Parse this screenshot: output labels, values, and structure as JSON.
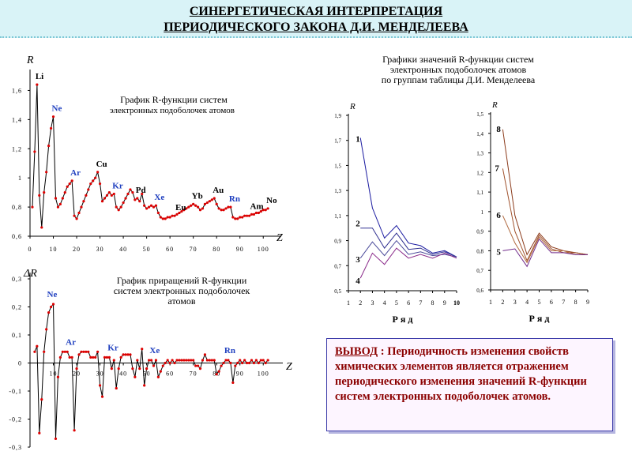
{
  "title": {
    "line1": "СИНЕРГЕТИЧЕСКАЯ ИНТЕРПРЕТАЦИЯ",
    "line2": "ПЕРИОДИЧЕСКОГО ЗАКОНА Д.И. МЕНДЕЛЕЕВА"
  },
  "colors": {
    "accent": "#1f3fbf",
    "curve": "#000000",
    "points": "#dd0000",
    "conclusion": "#8b0000"
  },
  "conclusion": {
    "heading": "ВЫВОД",
    "sep": " : ",
    "text": "Периодичность изменения свойств химических элементов является отражением периодического изменения значений R-функции систем электронных подоболочек атомов."
  },
  "chart_data": [
    {
      "type": "line",
      "title": "График R-функции систем электронных подоболочек атомов",
      "title_lines": [
        "График R-функции систем",
        "электронных подоболочек атомов"
      ],
      "xlabel": "Z",
      "ylabel": "R",
      "xlim": [
        0,
        105
      ],
      "ylim": [
        0.6,
        1.7
      ],
      "xticks": [
        0,
        10,
        20,
        30,
        40,
        50,
        60,
        70,
        80,
        90,
        100
      ],
      "xtick_labels": [
        "0",
        "10",
        "20",
        "30",
        "40",
        "50",
        "60",
        "70",
        "80",
        "90",
        "100"
      ],
      "yticks": [
        0.6,
        0.8,
        1.0,
        1.2,
        1.4,
        1.6
      ],
      "ytick_labels": [
        "0,6",
        "0,8",
        "1",
        "1,2",
        "1,4",
        "1,6"
      ],
      "x": [
        1,
        2,
        3,
        4,
        5,
        6,
        7,
        8,
        9,
        10,
        11,
        12,
        13,
        14,
        15,
        16,
        17,
        18,
        19,
        20,
        21,
        22,
        23,
        24,
        25,
        26,
        27,
        28,
        29,
        30,
        31,
        32,
        33,
        34,
        35,
        36,
        37,
        38,
        39,
        40,
        41,
        42,
        43,
        44,
        45,
        46,
        47,
        48,
        49,
        50,
        51,
        52,
        53,
        54,
        55,
        56,
        57,
        58,
        59,
        60,
        61,
        62,
        63,
        64,
        65,
        66,
        67,
        68,
        69,
        70,
        71,
        72,
        73,
        74,
        75,
        76,
        77,
        78,
        79,
        80,
        81,
        82,
        83,
        84,
        85,
        86,
        87,
        88,
        89,
        90,
        91,
        92,
        93,
        94,
        95,
        96,
        97,
        98,
        99,
        100,
        101,
        102
      ],
      "y": [
        0.8,
        1.18,
        1.64,
        0.88,
        0.66,
        0.9,
        1.04,
        1.22,
        1.34,
        1.42,
        0.86,
        0.8,
        0.82,
        0.86,
        0.9,
        0.94,
        0.96,
        0.98,
        0.74,
        0.72,
        0.76,
        0.8,
        0.84,
        0.88,
        0.92,
        0.96,
        0.98,
        1.0,
        1.04,
        0.96,
        0.84,
        0.86,
        0.88,
        0.9,
        0.88,
        0.89,
        0.8,
        0.78,
        0.8,
        0.83,
        0.86,
        0.89,
        0.92,
        0.9,
        0.85,
        0.86,
        0.84,
        0.89,
        0.81,
        0.79,
        0.8,
        0.81,
        0.8,
        0.81,
        0.76,
        0.73,
        0.72,
        0.72,
        0.73,
        0.73,
        0.74,
        0.74,
        0.75,
        0.76,
        0.77,
        0.78,
        0.79,
        0.8,
        0.81,
        0.82,
        0.81,
        0.8,
        0.78,
        0.79,
        0.82,
        0.83,
        0.84,
        0.85,
        0.86,
        0.82,
        0.79,
        0.78,
        0.78,
        0.79,
        0.8,
        0.8,
        0.73,
        0.72,
        0.72,
        0.73,
        0.73,
        0.74,
        0.74,
        0.74,
        0.75,
        0.75,
        0.76,
        0.76,
        0.77,
        0.78,
        0.78,
        0.79
      ],
      "annotations": [
        {
          "label": "Li",
          "x": 3,
          "y": 1.64,
          "color": "#000000"
        },
        {
          "label": "Ne",
          "x": 10,
          "y": 1.42,
          "color": "#1f3fbf"
        },
        {
          "label": "Ar",
          "x": 18,
          "y": 0.98,
          "color": "#1f3fbf"
        },
        {
          "label": "Cu",
          "x": 29,
          "y": 1.04,
          "color": "#000000"
        },
        {
          "label": "Kr",
          "x": 36,
          "y": 0.89,
          "color": "#1f3fbf"
        },
        {
          "label": "Pd",
          "x": 46,
          "y": 0.86,
          "color": "#000000"
        },
        {
          "label": "Xe",
          "x": 54,
          "y": 0.81,
          "color": "#1f3fbf"
        },
        {
          "label": "Eu",
          "x": 63,
          "y": 0.74,
          "color": "#000000"
        },
        {
          "label": "Yb",
          "x": 70,
          "y": 0.82,
          "color": "#000000"
        },
        {
          "label": "Au",
          "x": 79,
          "y": 0.86,
          "color": "#000000"
        },
        {
          "label": "Rn",
          "x": 86,
          "y": 0.8,
          "color": "#1f3fbf"
        },
        {
          "label": "Am",
          "x": 95,
          "y": 0.75,
          "color": "#000000"
        },
        {
          "label": "No",
          "x": 102,
          "y": 0.79,
          "color": "#000000"
        }
      ]
    },
    {
      "type": "line",
      "title": "График приращений R-функции систем электронных подоболочек атомов",
      "title_lines": [
        "График приращений R-функции",
        "систем электронных подоболочек",
        "атомов"
      ],
      "xlabel": "Z",
      "ylabel": "ΔR",
      "xlim": [
        0,
        105
      ],
      "ylim": [
        -0.3,
        0.3
      ],
      "xticks": [
        10,
        20,
        30,
        40,
        50,
        60,
        70,
        80,
        90,
        100
      ],
      "xtick_labels": [
        "10",
        "20",
        "30",
        "40",
        "50",
        "60",
        "70",
        "80",
        "90",
        "100"
      ],
      "yticks": [
        -0.3,
        -0.2,
        -0.1,
        0,
        0.1,
        0.2,
        0.3
      ],
      "ytick_labels": [
        "-0,3",
        "-0,2",
        "-0,1",
        "0",
        "0,1",
        "0,2",
        "0,3"
      ],
      "x": [
        2,
        3,
        4,
        5,
        6,
        7,
        8,
        9,
        10,
        11,
        12,
        13,
        14,
        15,
        16,
        17,
        18,
        19,
        20,
        21,
        22,
        23,
        24,
        25,
        26,
        27,
        28,
        29,
        30,
        31,
        32,
        33,
        34,
        35,
        36,
        37,
        38,
        39,
        40,
        41,
        42,
        43,
        44,
        45,
        46,
        47,
        48,
        49,
        50,
        51,
        52,
        53,
        54,
        55,
        56,
        57,
        58,
        59,
        60,
        61,
        62,
        63,
        64,
        65,
        66,
        67,
        68,
        69,
        70,
        71,
        72,
        73,
        74,
        75,
        76,
        77,
        78,
        79,
        80,
        81,
        82,
        83,
        84,
        85,
        86,
        87,
        88,
        89,
        90,
        91,
        92,
        93,
        94,
        95,
        96,
        97,
        98,
        99,
        100,
        101,
        102
      ],
      "y": [
        0.04,
        0.06,
        -0.25,
        -0.13,
        0.04,
        0.12,
        0.18,
        0.2,
        0.21,
        -0.27,
        -0.05,
        0.02,
        0.04,
        0.04,
        0.04,
        0.02,
        0.02,
        -0.24,
        -0.02,
        0.03,
        0.04,
        0.04,
        0.04,
        0.04,
        0.02,
        0.02,
        0.02,
        0.04,
        -0.08,
        -0.12,
        0.02,
        0.02,
        0.02,
        -0.02,
        0.01,
        -0.09,
        -0.02,
        0.02,
        0.03,
        0.03,
        0.03,
        0.03,
        -0.02,
        -0.05,
        0.01,
        -0.02,
        0.05,
        -0.08,
        -0.02,
        0.01,
        0.01,
        -0.01,
        0.01,
        -0.05,
        -0.03,
        -0.01,
        0.0,
        0.01,
        0.0,
        0.01,
        0.0,
        0.01,
        0.01,
        0.01,
        0.01,
        0.01,
        0.01,
        0.01,
        0.01,
        -0.01,
        -0.01,
        -0.02,
        0.01,
        0.03,
        0.01,
        0.01,
        0.01,
        0.01,
        -0.04,
        -0.03,
        -0.01,
        0.0,
        0.01,
        0.01,
        0.0,
        -0.07,
        -0.01,
        0.0,
        0.01,
        0.0,
        0.01,
        0.0,
        0.0,
        0.01,
        0.0,
        0.01,
        0.0,
        0.01,
        0.01,
        0.0,
        0.01
      ],
      "annotations": [
        {
          "label": "Ne",
          "x": 10,
          "y": 0.21,
          "color": "#1f3fbf"
        },
        {
          "label": "Ar",
          "x": 18,
          "y": 0.04,
          "color": "#1f3fbf"
        },
        {
          "label": "Kr",
          "x": 36,
          "y": 0.02,
          "color": "#1f3fbf"
        },
        {
          "label": "Xe",
          "x": 54,
          "y": 0.01,
          "color": "#1f3fbf"
        },
        {
          "label": "Rn",
          "x": 86,
          "y": 0.01,
          "color": "#1f3fbf"
        }
      ]
    },
    {
      "type": "line",
      "title": "Графики значений R-функции систем электронных подоболочек атомов по группам таблицы Д.И. Менделеева",
      "title_lines": [
        "Графики значений R-функции систем",
        "электронных подоболочек атомов",
        "по группам таблицы Д.И. Менделеева"
      ],
      "xlabel": "Р я д",
      "ylabel": "R",
      "xlim": [
        1,
        10
      ],
      "ylim": [
        0.5,
        1.9
      ],
      "xticks": [
        1,
        2,
        3,
        4,
        5,
        6,
        7,
        8,
        9,
        10
      ],
      "xtick_labels": [
        "1",
        "2",
        "3",
        "4",
        "5",
        "6",
        "7",
        "8",
        "9",
        "10"
      ],
      "yticks": [
        0.5,
        0.7,
        0.9,
        1.1,
        1.3,
        1.5,
        1.7,
        1.9
      ],
      "ytick_labels": [
        "0,5",
        "0,7",
        "0,9",
        "1,1",
        "1,3",
        "1,5",
        "1,7",
        "1,9"
      ],
      "x": [
        2,
        3,
        4,
        5,
        6,
        7,
        8,
        9,
        10
      ],
      "series": [
        {
          "name": "1",
          "color": "#1a1aa0",
          "values": [
            1.72,
            1.16,
            0.92,
            1.02,
            0.88,
            0.86,
            0.8,
            0.82,
            0.77
          ]
        },
        {
          "name": "2",
          "color": "#303090",
          "values": [
            1.0,
            1.0,
            0.84,
            0.96,
            0.83,
            0.84,
            0.79,
            0.81,
            0.77
          ]
        },
        {
          "name": "3",
          "color": "#4a4a9a",
          "values": [
            0.76,
            0.89,
            0.78,
            0.9,
            0.79,
            0.81,
            0.78,
            0.79,
            0.77
          ]
        },
        {
          "name": "4",
          "color": "#8a2a8a",
          "values": [
            0.6,
            0.8,
            0.71,
            0.84,
            0.76,
            0.79,
            0.76,
            0.8,
            0.76
          ]
        }
      ]
    },
    {
      "type": "line",
      "title": "",
      "xlabel": "Р я д",
      "ylabel": "R",
      "xlim": [
        1,
        9
      ],
      "ylim": [
        0.6,
        1.5
      ],
      "xticks": [
        1,
        2,
        3,
        4,
        5,
        6,
        7,
        8,
        9
      ],
      "xtick_labels": [
        "1",
        "2",
        "3",
        "4",
        "5",
        "6",
        "7",
        "8",
        "9"
      ],
      "yticks": [
        0.6,
        0.7,
        0.8,
        0.9,
        1.0,
        1.1,
        1.2,
        1.3,
        1.4,
        1.5
      ],
      "ytick_labels": [
        "0,6",
        "0,7",
        "0,8",
        "0,9",
        "1",
        "1,1",
        "1,2",
        "1,3",
        "1,4",
        "1,5"
      ],
      "x": [
        2,
        3,
        4,
        5,
        6,
        7,
        8,
        9
      ],
      "series": [
        {
          "name": "8",
          "color": "#8b3a1a",
          "values": [
            1.42,
            0.98,
            0.78,
            0.89,
            0.82,
            0.8,
            0.79,
            0.78
          ]
        },
        {
          "name": "7",
          "color": "#a0522d",
          "values": [
            1.22,
            0.9,
            0.75,
            0.88,
            0.81,
            0.79,
            0.79,
            0.78
          ]
        },
        {
          "name": "6",
          "color": "#b06a40",
          "values": [
            0.98,
            0.84,
            0.74,
            0.87,
            0.8,
            0.8,
            0.78,
            0.78
          ]
        },
        {
          "name": "5",
          "color": "#702a8a",
          "values": [
            0.8,
            0.81,
            0.72,
            0.86,
            0.79,
            0.79,
            0.78,
            0.78
          ]
        }
      ]
    }
  ]
}
